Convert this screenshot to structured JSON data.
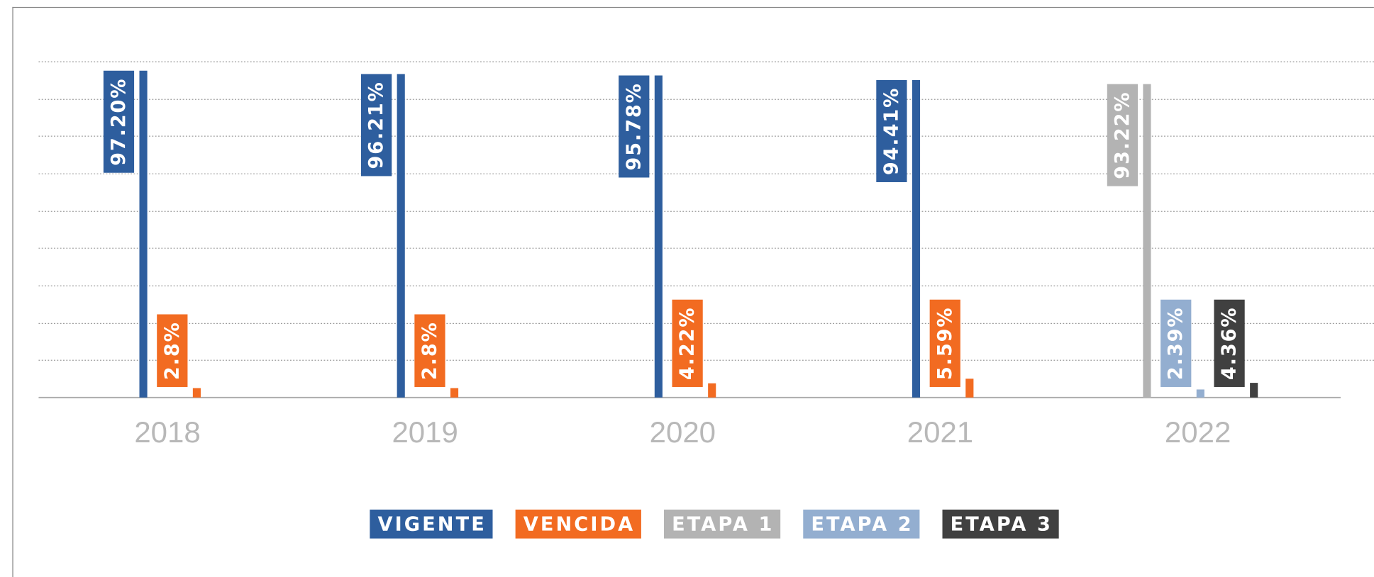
{
  "chart_data": {
    "type": "bar",
    "categories": [
      "2018",
      "2019",
      "2020",
      "2021",
      "2022"
    ],
    "series": [
      {
        "name": "VIGENTE",
        "color": "#2e5e9e",
        "values": [
          97.2,
          96.21,
          95.78,
          94.41,
          null
        ],
        "value_labels": [
          "97.20%",
          "96.21%",
          "95.78%",
          "94.41%",
          null
        ]
      },
      {
        "name": "VENCIDA",
        "color": "#f26b21",
        "values": [
          2.8,
          2.8,
          4.22,
          5.59,
          null
        ],
        "value_labels": [
          "2.8%",
          "2.8%",
          "4.22%",
          "5.59%",
          null
        ]
      },
      {
        "name": "ETAPA 1",
        "color": "#b3b3b3",
        "values": [
          null,
          null,
          null,
          null,
          93.22
        ],
        "value_labels": [
          null,
          null,
          null,
          null,
          "93.22%"
        ]
      },
      {
        "name": "ETAPA 2",
        "color": "#93aed0",
        "values": [
          null,
          null,
          null,
          null,
          2.39
        ],
        "value_labels": [
          null,
          null,
          null,
          null,
          "2.39%"
        ]
      },
      {
        "name": "ETAPA 3",
        "color": "#404040",
        "values": [
          null,
          null,
          null,
          null,
          4.36
        ],
        "value_labels": [
          null,
          null,
          null,
          null,
          "4.36%"
        ]
      }
    ],
    "ylim": [
      0,
      100
    ],
    "yticks": [
      0,
      11.11,
      22.22,
      33.33,
      44.44,
      55.56,
      66.67,
      77.78,
      88.89,
      100
    ],
    "grid": true
  }
}
